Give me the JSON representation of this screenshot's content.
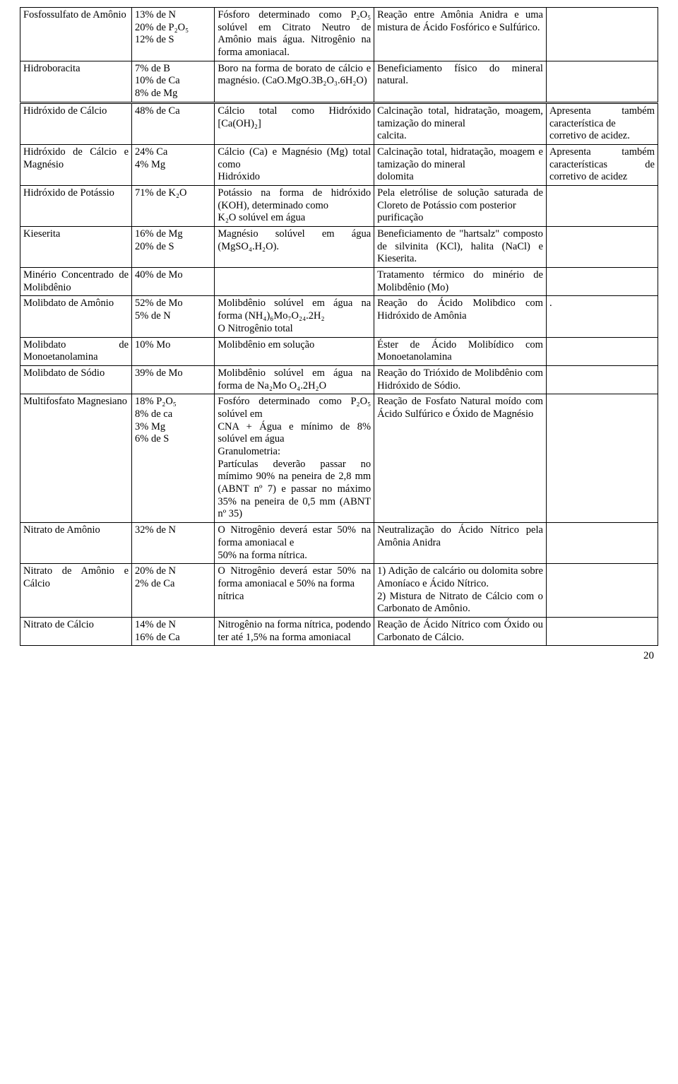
{
  "page_number": "20",
  "rows": [
    {
      "c1": "Fosfossulfato de Amônio",
      "c2": "13% de N\n20% de P₂O₅\n12% de S",
      "c3": "Fósforo determinado como P₂O₅ solúvel em Citrato Neutro de Amônio mais água. Nitrogênio na forma amoniacal.",
      "c4": "Reação entre Amônia Anidra e uma mistura de Ácido Fosfórico e Sulfúrico.",
      "c5": ""
    },
    {
      "c1": "Hidroboracita",
      "c2": "7% de B\n10% de Ca\n8% de Mg",
      "c3": "Boro na forma de borato de cálcio e magnésio. (CaO.MgO.3B₂O₃.6H₂O)",
      "c4": "Beneficiamento físico do mineral natural.",
      "c5": ""
    },
    {
      "doubleTop": true,
      "c1": "Hidróxido de Cálcio",
      "c2": "48% de Ca",
      "c3": "Cálcio total como Hidróxido [Ca(OH)₂]",
      "c4": "Calcinação total, hidratação, moagem, tamização do mineral\ncalcita.",
      "c5": "Apresenta também característica de\n corretivo de acidez."
    },
    {
      "c1": "Hidróxido de Cálcio e Magnésio",
      "c2": "24% Ca\n4% Mg",
      "c3": "Cálcio (Ca) e Magnésio (Mg) total como\n Hidróxido",
      "c4": "Calcinação total, hidratação, moagem e tamização do mineral\ndolomita",
      "c5": "Apresenta também características de corretivo de acidez"
    },
    {
      "c1": "Hidróxido de Potássio",
      "c2": "71% de K₂O",
      "c3": "Potássio na forma de hidróxido (KOH), determinado como\n K₂O solúvel em água",
      "c4": "Pela eletrólise de solução saturada de Cloreto de Potássio com posterior\npurificação",
      "c5": ""
    },
    {
      "c1": "Kieserita",
      "c2": "16% de Mg\n20% de S",
      "c3": "Magnésio solúvel em água (MgSO₄.H₂O).",
      "c4": "Beneficiamento de \"hartsalz\" composto de silvinita (KCl), halita (NaCl) e Kieserita.",
      "c5": ""
    },
    {
      "c1": "Minério Concentrado de Molibdênio",
      "c2": "40% de Mo",
      "c3": "",
      "c4": "Tratamento térmico do minério de Molibdênio (Mo)",
      "c5": ""
    },
    {
      "c1": "Molibdato de Amônio",
      "c2": "52% de Mo\n5% de N",
      "c3": "Molibdênio solúvel em água na forma (NH₄)₆Mo₇O₂₄.2H₂\nO Nitrogênio total",
      "c4": "Reação do Ácido Molibdico com Hidróxido de Amônia",
      "c5": "."
    },
    {
      "c1": "Molibdato de Monoetanolamina",
      "c2": "10% Mo",
      "c3": "Molibdênio em solução",
      "c4": "Éster de Ácido Molibídico com  Monoetanolamina",
      "c5": ""
    },
    {
      "c1": "Molibdato de Sódio",
      "c2": "39% de Mo",
      "c3": "Molibdênio solúvel em água na forma de Na₂Mo O₄.2H₂O",
      "c4": "Reação do Trióxido de Molibdênio com Hidróxido de Sódio.",
      "c5": ""
    },
    {
      "c1": "Multifosfato Magnesiano",
      "c2": "18% P₂O₅\n8% de ca\n3% Mg\n6% de S",
      "c3": "Fosfóro determinado como P₂O₅ solúvel em\n CNA + Água e mínimo de 8% solúvel em água\nGranulometria:\nPartículas deverão passar no mímimo 90% na peneira de 2,8 mm (ABNT nº 7) e  passar no máximo 35% na peneira de 0,5 mm (ABNT nº 35)",
      "c4": "Reação de Fosfato Natural moído com Ácido Sulfúrico e Óxido de Magnésio",
      "c5": ""
    },
    {
      "c1": "Nitrato de Amônio",
      "c2": "32% de N",
      "c3": "O Nitrogênio deverá estar 50% na forma amoniacal e\n 50% na forma nítrica.",
      "c4": "Neutralização do Ácido Nítrico pela Amônia Anidra",
      "c5": ""
    },
    {
      "c1": "Nitrato de Amônio e Cálcio",
      "c2": "20% de N\n2% de Ca",
      "c3": "O Nitrogênio deverá estar 50% na forma amoniacal e 50% na forma\n nítrica",
      "c4": "1) Adição de calcário ou dolomita sobre Amoníaco e Ácido Nítrico.\n2) Mistura de Nitrato de Cálcio com o Carbonato de Amônio.",
      "c5": ""
    },
    {
      "c1": "Nitrato de Cálcio",
      "c2": "14% de N\n16% de Ca",
      "c3": "Nitrogênio na forma nítrica, podendo ter até 1,5% na forma  amoniacal",
      "c4": "Reação de Ácido Nítrico com Óxido ou Carbonato de Cálcio.",
      "c5": ""
    }
  ]
}
